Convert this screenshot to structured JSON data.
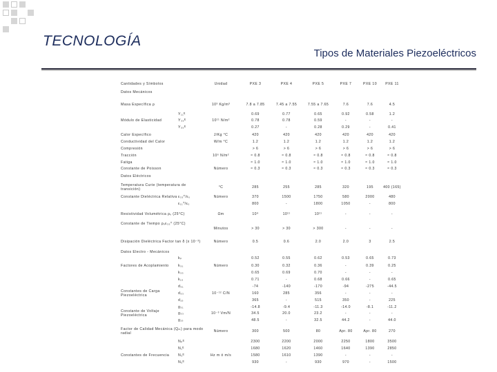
{
  "header": {
    "title": "TECNOLOGÍA",
    "subtitle": "Tipos de Materiales Piezoeléctricos"
  },
  "table": {
    "label_header": "Cantidades y Símbolos",
    "unit_header": "Unidad",
    "columns": [
      "PXE 3",
      "PXE 4",
      "PXE 5",
      "PXE 7",
      "PXE 10",
      "PXE 11"
    ],
    "rows": [
      {
        "section": "Datos Mecánicos"
      },
      {
        "label": "Masa Específica ρ",
        "unit": "10³ Kg/m³",
        "values": [
          "7.8 a 7.85",
          "7.45 a 7.55",
          "7.55 a 7.65",
          "7.6",
          "7.6",
          "4.5"
        ]
      },
      {
        "symbol": "Y₁₁ᴱ",
        "values": [
          "0.69",
          "0.77",
          "0.65",
          "0.92",
          "0.58",
          "1.2"
        ]
      },
      {
        "label": "Módulo de Elasticidad",
        "symbol": "Y₃₃ᴱ",
        "unit": "10¹¹ N/m²",
        "values": [
          "0.78",
          "0.78",
          "0.59",
          "-",
          "-",
          "-"
        ]
      },
      {
        "symbol": "Y₅₅ᴱ",
        "values": [
          "0.27",
          "-",
          "0.28",
          "0.29",
          "-",
          "0.41"
        ]
      },
      {
        "label": "Calor Específico",
        "unit": "J/Kg °C",
        "values": [
          "420",
          "420",
          "420",
          "420",
          "420",
          "420"
        ]
      },
      {
        "label": "Conductividad del Calor",
        "unit": "W/m °C",
        "values": [
          "1.2",
          "1.2",
          "1.2",
          "1.2",
          "1.2",
          "1.2"
        ]
      },
      {
        "label": "Compresión",
        "values": [
          "> 6",
          "> 6",
          "> 6",
          "> 6",
          "> 6",
          "> 6"
        ]
      },
      {
        "label": "Tracción",
        "unit": "10⁶ N/m²",
        "values": [
          "≈ 0.8",
          "≈ 0.8",
          "≈ 0.8",
          "≈ 0.8",
          "≈ 0.8",
          "≈ 0.8"
        ]
      },
      {
        "label": "Fatiga",
        "values": [
          "≈ 1.0",
          "≈ 1.0",
          "≈ 1.0",
          "≈ 1.0",
          "≈ 1.0",
          "≈ 1.0"
        ]
      },
      {
        "label": "Constante de Poisson",
        "unit": "Número",
        "values": [
          "≈ 0.3",
          "≈ 0.3",
          "≈ 0.3",
          "≈ 0.3",
          "≈ 0.3",
          "≈ 0.3"
        ]
      },
      {
        "section": "Datos Eléctricos"
      },
      {
        "label": "Temperatura Curie (temperatura de transición)",
        "unit": "°C",
        "values": [
          "285",
          "255",
          "285",
          "320",
          "195",
          "400 (165)"
        ]
      },
      {
        "label": "Constante Dieléctrica Relativa",
        "symbol": "ε₃₃ᵀ/ε₀",
        "unit": "Número",
        "values": [
          "370",
          "1500",
          "1750",
          "580",
          "2000",
          "480"
        ]
      },
      {
        "symbol": "ε₁₁ᵀ/ε₀",
        "values": [
          "800",
          "-",
          "1800",
          "1050",
          "-",
          "800"
        ]
      },
      {
        "label": "Resistividad Volumétrica ρᵥ (25°C)",
        "unit": "Ωm",
        "values": [
          "10⁹",
          "10¹¹",
          "10¹¹",
          "-",
          "-",
          "-"
        ]
      },
      {
        "label": "Constante de Tiempo ρᵥε₃₃ᵀ (25°C)"
      },
      {
        "unit": "Minutos",
        "values": [
          "> 30",
          "> 30",
          "> 300",
          "-",
          "-",
          "-"
        ]
      },
      {
        "label": "Disipación Dieléctrica Factor tan δ (x 10⁻³)",
        "unit": "Número",
        "values": [
          "0.5",
          "0.6",
          "2.0",
          "2.0",
          "3",
          "2.5"
        ]
      },
      {
        "section": "Datos Electro - Mecánicos"
      },
      {
        "symbol": "kₚ",
        "values": [
          "0.52",
          "0.55",
          "0.62",
          "0.53",
          "0.65",
          "0.73"
        ]
      },
      {
        "label": "Factores de Acoplamiento",
        "symbol": "k₃₁",
        "unit": "Número",
        "values": [
          "0.30",
          "0.32",
          "0.36",
          "-",
          "0.39",
          "0.25"
        ]
      },
      {
        "symbol": "k₃₃",
        "values": [
          "0.65",
          "0.69",
          "0.70",
          "-",
          "-",
          "-"
        ]
      },
      {
        "symbol": "k₁₅",
        "values": [
          "0.71",
          "-",
          "0.68",
          "0.66",
          "-",
          "0.65"
        ]
      },
      {
        "symbol": "d₃₁",
        "values": [
          "-74",
          "-140",
          "-170",
          "-94",
          "-275",
          "-44.5"
        ]
      },
      {
        "label": "Constantes de Carga Piezoeléctrica",
        "symbol": "d₃₃",
        "unit": "10⁻¹² C/N",
        "values": [
          "160",
          "285",
          "356",
          "-",
          "-",
          "-"
        ]
      },
      {
        "symbol": "d₁₅",
        "values": [
          "365",
          "-",
          "515",
          "350",
          "-",
          "225"
        ]
      },
      {
        "symbol": "g₃₁",
        "values": [
          "-14.8",
          "-9.4",
          "-11.3",
          "-14.0",
          "-8.1",
          "-11.2"
        ]
      },
      {
        "label": "Constante de Voltaje Piezoeléctrica",
        "symbol": "g₃₃",
        "unit": "10⁻³ Vm/N",
        "values": [
          "34.5",
          "20.0",
          "23.2",
          "-",
          "-",
          "-"
        ]
      },
      {
        "symbol": "g₁₅",
        "values": [
          "48.5",
          "-",
          "32.5",
          "44.2",
          "-",
          "44.0"
        ]
      },
      {
        "label": "Factor de Calidad Mecánica (Qₘ) para modo radial",
        "unit": "Número",
        "values": [
          "300",
          "500",
          "80",
          "Apr. 80",
          "Apr. 80",
          "270"
        ]
      },
      {
        "symbol": "Nₚᴱ",
        "values": [
          "2300",
          "2200",
          "2000",
          "2250",
          "1800",
          "3500"
        ]
      },
      {
        "symbol": "N₁ᴱ",
        "values": [
          "1680",
          "1620",
          "1460",
          "1640",
          "1390",
          "2850"
        ]
      },
      {
        "label": "Constantes de Frecuencia",
        "symbol": "N₃ᴱ",
        "unit": "Hz m ó m/s",
        "values": [
          "1580",
          "1610",
          "1390",
          "-",
          "-",
          "-"
        ]
      },
      {
        "symbol": "N₅ᴱ",
        "values": [
          "930",
          "-",
          "930",
          "970",
          "-",
          "1500"
        ]
      }
    ]
  }
}
